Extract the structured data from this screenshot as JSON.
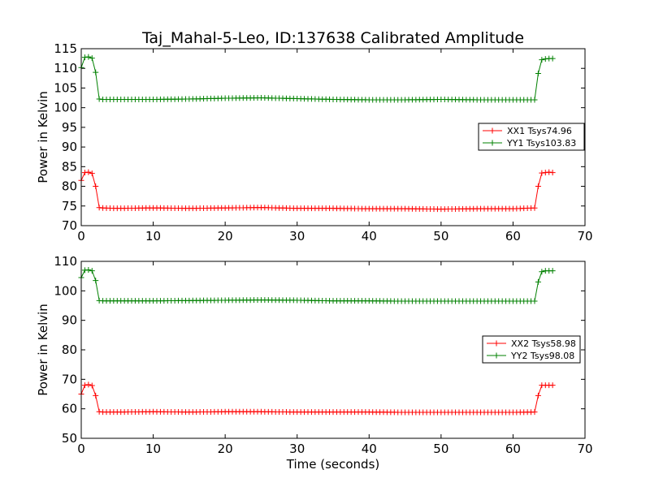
{
  "title": "Taj_Mahal-5-Leo, ID:137638 Calibrated Amplitude",
  "chart_data": [
    {
      "type": "line",
      "ylabel": "Power in Kelvin",
      "xlabel": "",
      "xlim": [
        0,
        70
      ],
      "ylim": [
        70,
        115
      ],
      "xticks": [
        0,
        10,
        20,
        30,
        40,
        50,
        60,
        70
      ],
      "yticks": [
        70,
        75,
        80,
        85,
        90,
        95,
        100,
        105,
        110,
        115
      ],
      "legend_position": "center-right",
      "time_profile": {
        "x": [
          0.0,
          0.5,
          1.0,
          1.5,
          2.0,
          2.5,
          3.0,
          5.0,
          10.0,
          15.0,
          20.0,
          25.0,
          30.0,
          35.0,
          40.0,
          45.0,
          50.0,
          55.0,
          60.0,
          63.0,
          63.5,
          64.0,
          64.5,
          65.0,
          65.5
        ],
        "markers_every": 0.5
      },
      "series": [
        {
          "name": "XX1 Tsys74.96",
          "color": "#ff0000",
          "y": [
            81.5,
            83.5,
            83.6,
            83.3,
            80.0,
            74.6,
            74.5,
            74.4,
            74.5,
            74.4,
            74.5,
            74.6,
            74.4,
            74.4,
            74.3,
            74.3,
            74.2,
            74.3,
            74.3,
            74.5,
            80.0,
            83.4,
            83.5,
            83.6,
            83.5
          ]
        },
        {
          "name": "YY1 Tsys103.83",
          "color": "#008000",
          "y": [
            110.2,
            112.8,
            112.9,
            112.6,
            109.0,
            102.2,
            102.1,
            102.1,
            102.1,
            102.2,
            102.4,
            102.5,
            102.3,
            102.1,
            102.0,
            102.0,
            102.1,
            102.0,
            102.0,
            102.0,
            108.7,
            112.2,
            112.4,
            112.5,
            112.5
          ]
        }
      ]
    },
    {
      "type": "line",
      "ylabel": "Power in Kelvin",
      "xlabel": "Time (seconds)",
      "xlim": [
        0,
        70
      ],
      "ylim": [
        50,
        110
      ],
      "xticks": [
        0,
        10,
        20,
        30,
        40,
        50,
        60,
        70
      ],
      "yticks": [
        50,
        60,
        70,
        80,
        90,
        100,
        110
      ],
      "legend_position": "center-right",
      "time_profile": {
        "x": [
          0.0,
          0.5,
          1.0,
          1.5,
          2.0,
          2.5,
          3.0,
          5.0,
          10.0,
          15.0,
          20.0,
          25.0,
          30.0,
          35.0,
          40.0,
          45.0,
          50.0,
          55.0,
          60.0,
          63.0,
          63.5,
          64.0,
          64.5,
          65.0,
          65.5
        ],
        "markers_every": 0.5
      },
      "series": [
        {
          "name": "XX2 Tsys58.98",
          "color": "#ff0000",
          "y": [
            65.0,
            68.0,
            68.2,
            67.9,
            64.5,
            59.0,
            58.9,
            58.9,
            59.0,
            58.9,
            59.0,
            59.0,
            58.9,
            58.9,
            58.9,
            58.8,
            58.8,
            58.8,
            58.8,
            58.9,
            64.5,
            68.0,
            68.0,
            68.0,
            68.0
          ]
        },
        {
          "name": "YY2 Tsys98.08",
          "color": "#008000",
          "y": [
            104.5,
            107.0,
            107.1,
            106.8,
            103.5,
            96.7,
            96.6,
            96.6,
            96.6,
            96.7,
            96.8,
            96.9,
            96.8,
            96.6,
            96.6,
            96.5,
            96.5,
            96.5,
            96.5,
            96.5,
            103.0,
            106.5,
            106.8,
            106.8,
            106.8
          ]
        }
      ]
    }
  ]
}
